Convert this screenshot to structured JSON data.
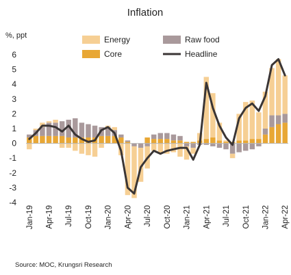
{
  "chart_data": {
    "type": "bar",
    "title": "Inflation",
    "ylabel": "%, ppt",
    "ylim": [
      -4,
      6
    ],
    "yticks": [
      6,
      5,
      4,
      3,
      2,
      1,
      0,
      -1,
      -2,
      -3,
      -4
    ],
    "grid": false,
    "legend_position": "top",
    "x": [
      "2019-01",
      "2019-02",
      "2019-03",
      "2019-04",
      "2019-05",
      "2019-06",
      "2019-07",
      "2019-08",
      "2019-09",
      "2019-10",
      "2019-11",
      "2019-12",
      "2020-01",
      "2020-02",
      "2020-03",
      "2020-04",
      "2020-05",
      "2020-06",
      "2020-07",
      "2020-08",
      "2020-09",
      "2020-10",
      "2020-11",
      "2020-12",
      "2021-01",
      "2021-02",
      "2021-03",
      "2021-04",
      "2021-05",
      "2021-06",
      "2021-07",
      "2021-08",
      "2021-09",
      "2021-10",
      "2021-11",
      "2021-12",
      "2022-01",
      "2022-02",
      "2022-03",
      "2022-04"
    ],
    "xtick_labels": [
      {
        "index": 0,
        "label": "Jan-19"
      },
      {
        "index": 3,
        "label": "Apr-19"
      },
      {
        "index": 6,
        "label": "Jul-19"
      },
      {
        "index": 9,
        "label": "Oct-19"
      },
      {
        "index": 12,
        "label": "Jan-20"
      },
      {
        "index": 15,
        "label": "Apr-20"
      },
      {
        "index": 18,
        "label": "Jul-20"
      },
      {
        "index": 21,
        "label": "Oct-20"
      },
      {
        "index": 24,
        "label": "Jan-21"
      },
      {
        "index": 27,
        "label": "Apr-21"
      },
      {
        "index": 30,
        "label": "Jul-21"
      },
      {
        "index": 33,
        "label": "Oct-21"
      },
      {
        "index": 36,
        "label": "Jan-22"
      },
      {
        "index": 39,
        "label": "Apr-22"
      }
    ],
    "series": [
      {
        "name": "Core",
        "kind": "stacked-bar",
        "color": "#e8a735",
        "values": [
          0.4,
          0.5,
          0.5,
          0.5,
          0.5,
          0.5,
          0.4,
          0.4,
          0.4,
          0.4,
          0.4,
          0.5,
          0.5,
          0.5,
          0.4,
          0.1,
          0.0,
          0.0,
          0.4,
          0.3,
          0.3,
          0.3,
          0.2,
          0.2,
          0.1,
          0.1,
          0.2,
          0.3,
          0.4,
          0.2,
          0.1,
          0.1,
          0.2,
          0.2,
          0.3,
          0.3,
          0.6,
          1.1,
          1.3,
          1.4
        ]
      },
      {
        "name": "Raw food",
        "kind": "stacked-bar",
        "color": "#a9999b",
        "values": [
          0.2,
          0.4,
          0.6,
          0.9,
          0.9,
          1.0,
          1.2,
          1.3,
          1.0,
          0.9,
          0.8,
          0.6,
          0.6,
          0.4,
          0.2,
          0.1,
          -0.2,
          -0.3,
          -0.2,
          0.3,
          0.4,
          0.4,
          0.4,
          0.3,
          -0.2,
          -0.3,
          -0.1,
          -0.1,
          -0.2,
          -0.3,
          -0.4,
          -0.7,
          -0.6,
          -0.5,
          -0.4,
          -0.2,
          0.4,
          0.8,
          0.6,
          0.6
        ]
      },
      {
        "name": "Energy",
        "kind": "stacked-bar",
        "color": "#f6cf94",
        "values": [
          -0.4,
          0.1,
          0.3,
          0.1,
          0.2,
          -0.3,
          -0.3,
          -0.5,
          -0.7,
          -0.8,
          -0.9,
          -0.3,
          0.1,
          0.2,
          -0.8,
          -3.5,
          -3.5,
          -2.3,
          -1.5,
          -0.5,
          -0.7,
          -0.7,
          -0.6,
          -0.9,
          -0.9,
          -0.4,
          0.5,
          4.2,
          3.0,
          1.2,
          0.1,
          -0.3,
          1.8,
          2.6,
          2.6,
          1.8,
          2.5,
          3.2,
          3.8,
          2.6
        ]
      },
      {
        "name": "Headline",
        "kind": "line",
        "color": "#3a3535",
        "values": [
          0.3,
          0.7,
          1.2,
          1.2,
          1.1,
          0.8,
          1.2,
          0.6,
          0.3,
          0.1,
          0.2,
          0.9,
          1.1,
          0.7,
          -0.5,
          -3.0,
          -3.4,
          -1.6,
          -1.0,
          -0.5,
          -0.7,
          -0.5,
          -0.4,
          -0.3,
          -0.3,
          -1.1,
          -0.1,
          4.1,
          2.4,
          1.2,
          0.4,
          -0.1,
          1.7,
          2.4,
          2.7,
          2.2,
          3.2,
          5.3,
          5.7,
          4.6
        ]
      }
    ],
    "legend": [
      {
        "name": "Energy",
        "swatch": "box",
        "color": "#f6cf94"
      },
      {
        "name": "Raw food",
        "swatch": "box",
        "color": "#a9999b"
      },
      {
        "name": "Core",
        "swatch": "box",
        "color": "#e8a735"
      },
      {
        "name": "Headline",
        "swatch": "line",
        "color": "#3a3535"
      }
    ],
    "source": "Source:  MOC, Krungsri Research"
  }
}
